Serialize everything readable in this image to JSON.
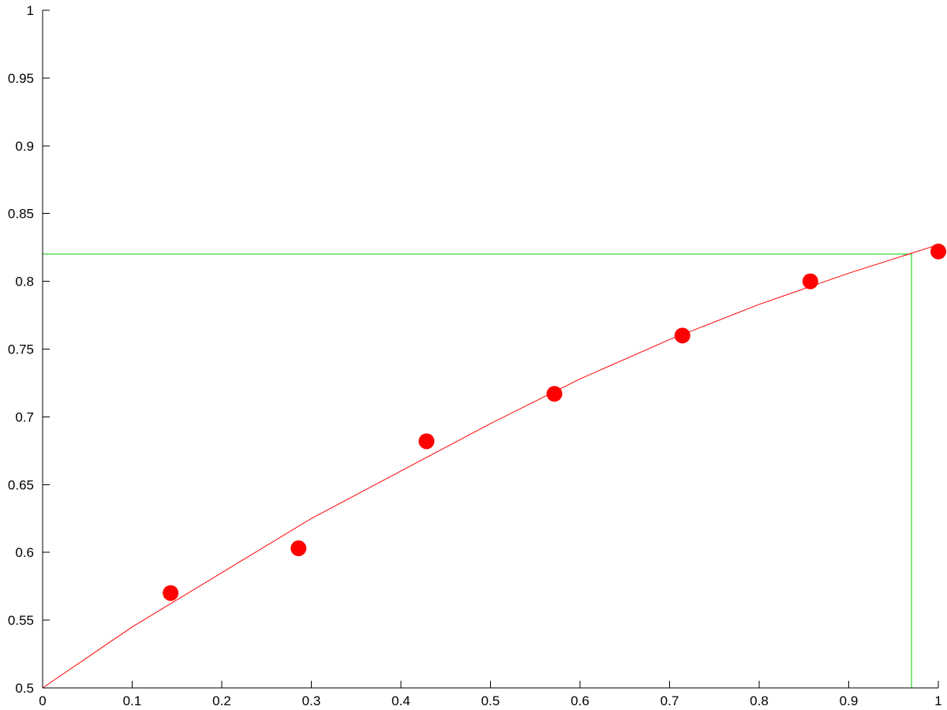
{
  "chart_data": {
    "type": "scatter",
    "title": "",
    "xlabel": "",
    "ylabel": "",
    "xlim": [
      0,
      1
    ],
    "ylim": [
      0.5,
      1
    ],
    "x_ticks": [
      "0",
      "0.1",
      "0.2",
      "0.3",
      "0.4",
      "0.5",
      "0.6",
      "0.7",
      "0.8",
      "0.9",
      "1"
    ],
    "y_ticks": [
      "0.5",
      "0.55",
      "0.6",
      "0.65",
      "0.7",
      "0.75",
      "0.8",
      "0.85",
      "0.9",
      "0.95",
      "1"
    ],
    "grid": false,
    "series": [
      {
        "kind": "scatter",
        "color": "#ff0000",
        "points": [
          {
            "x": 0.1429,
            "y": 0.57
          },
          {
            "x": 0.2857,
            "y": 0.603
          },
          {
            "x": 0.4286,
            "y": 0.682
          },
          {
            "x": 0.5714,
            "y": 0.717
          },
          {
            "x": 0.7143,
            "y": 0.76
          },
          {
            "x": 0.8571,
            "y": 0.8
          },
          {
            "x": 1.0,
            "y": 0.822
          }
        ]
      },
      {
        "kind": "line",
        "color": "#ff0000",
        "points": [
          {
            "x": 0.0,
            "y": 0.5
          },
          {
            "x": 0.1,
            "y": 0.545
          },
          {
            "x": 0.2,
            "y": 0.585
          },
          {
            "x": 0.3,
            "y": 0.625
          },
          {
            "x": 0.4,
            "y": 0.66
          },
          {
            "x": 0.5,
            "y": 0.695
          },
          {
            "x": 0.6,
            "y": 0.728
          },
          {
            "x": 0.7,
            "y": 0.757
          },
          {
            "x": 0.8,
            "y": 0.783
          },
          {
            "x": 0.9,
            "y": 0.806
          },
          {
            "x": 1.0,
            "y": 0.827
          }
        ]
      }
    ],
    "reference_lines": {
      "color": "#00cc00",
      "horizontal_y": 0.82,
      "vertical_x": 0.97
    }
  }
}
